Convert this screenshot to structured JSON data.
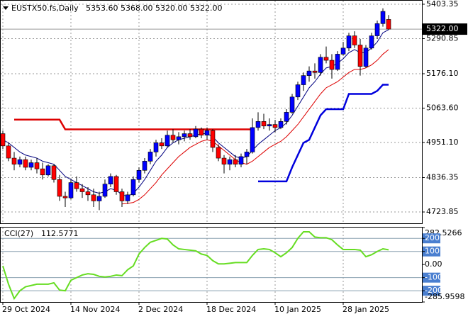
{
  "chart_data": {
    "type": "candlestick",
    "symbol": "EUSTX50.fs,Daily",
    "header_values": [
      "5353.60",
      "5368.00",
      "5320.00",
      "5322.00"
    ],
    "categories": [
      "29 Oct 2024",
      null,
      null,
      null,
      null,
      null,
      null,
      null,
      null,
      null,
      null,
      null,
      "14 Nov 2024",
      null,
      null,
      null,
      null,
      null,
      null,
      null,
      null,
      null,
      null,
      null,
      "2 Dec 2024",
      null,
      null,
      null,
      null,
      null,
      null,
      null,
      null,
      null,
      null,
      null,
      "18 Dec 2024",
      null,
      null,
      null,
      null,
      null,
      null,
      null,
      null,
      null,
      null,
      null,
      "10 Jan 2025",
      null,
      null,
      null,
      null,
      null,
      null,
      null,
      null,
      null,
      null,
      null,
      "28 Jan 2025",
      null,
      null,
      null,
      null,
      null,
      null,
      null,
      null
    ],
    "open": [
      4980,
      4940,
      4900,
      4880,
      4895,
      4870,
      4885,
      4865,
      4845,
      4875,
      4830,
      4775,
      4770,
      4820,
      4800,
      4790,
      4780,
      4760,
      4775,
      4815,
      4840,
      4790,
      4760,
      4780,
      4830,
      4860,
      4890,
      4920,
      4950,
      4940,
      4975,
      4960,
      4970,
      4980,
      4970,
      4995,
      4975,
      4990,
      4935,
      4900,
      4880,
      4895,
      4880,
      4905,
      4920,
      5000,
      5020,
      5005,
      5010,
      5000,
      5020,
      5050,
      5100,
      5140,
      5170,
      5185,
      5180,
      5230,
      5220,
      5190,
      5240,
      5260,
      5300,
      5270,
      5200,
      5260,
      5300,
      5340,
      5353.6
    ],
    "high": [
      4990,
      4950,
      4920,
      4905,
      4905,
      4895,
      4900,
      4885,
      4880,
      4880,
      4845,
      4790,
      4830,
      4840,
      4815,
      4805,
      4800,
      4790,
      4830,
      4850,
      4845,
      4800,
      4790,
      4840,
      4870,
      4900,
      4930,
      4960,
      4965,
      4990,
      4995,
      4985,
      4990,
      4995,
      5005,
      5000,
      5000,
      4995,
      4945,
      4910,
      4905,
      4910,
      4915,
      4930,
      5030,
      5050,
      5045,
      5030,
      5025,
      5030,
      5060,
      5110,
      5150,
      5180,
      5200,
      5210,
      5240,
      5265,
      5240,
      5250,
      5280,
      5310,
      5315,
      5290,
      5270,
      5310,
      5350,
      5390,
      5368
    ],
    "low": [
      4930,
      4890,
      4860,
      4870,
      4860,
      4860,
      4850,
      4830,
      4840,
      4820,
      4760,
      4740,
      4765,
      4790,
      4770,
      4760,
      4740,
      4730,
      4770,
      4805,
      4780,
      4740,
      4750,
      4775,
      4820,
      4850,
      4880,
      4905,
      4930,
      4935,
      4950,
      4945,
      4955,
      4960,
      4965,
      4965,
      4960,
      4920,
      4890,
      4850,
      4860,
      4870,
      4870,
      4880,
      4915,
      4990,
      4995,
      4990,
      4985,
      4995,
      5010,
      5045,
      5090,
      5120,
      5150,
      5160,
      5170,
      5210,
      5160,
      5185,
      5235,
      5250,
      5260,
      5170,
      5195,
      5255,
      5290,
      5330,
      5320
    ],
    "close": [
      4940,
      4900,
      4880,
      4895,
      4870,
      4885,
      4865,
      4845,
      4875,
      4830,
      4775,
      4770,
      4820,
      4800,
      4790,
      4780,
      4760,
      4775,
      4815,
      4840,
      4790,
      4760,
      4780,
      4830,
      4860,
      4890,
      4920,
      4950,
      4940,
      4975,
      4960,
      4970,
      4980,
      4970,
      4995,
      4975,
      4990,
      4935,
      4900,
      4880,
      4895,
      4880,
      4905,
      4920,
      5000,
      5020,
      5005,
      5010,
      5000,
      5020,
      5050,
      5100,
      5140,
      5170,
      5185,
      5180,
      5230,
      5220,
      5190,
      5240,
      5260,
      5300,
      5270,
      5200,
      5260,
      5300,
      5340,
      5380,
      5322
    ],
    "up_color": "#0000ff",
    "down_color": "#ff0000",
    "lines": [
      {
        "color": "#000080",
        "style": "thin",
        "values": [
          4960,
          4950,
          4935,
          4920,
          4910,
          4905,
          4900,
          4890,
          4885,
          4880,
          4860,
          4840,
          4830,
          4820,
          4810,
          4800,
          4790,
          4785,
          4790,
          4800,
          4795,
          4780,
          4775,
          4785,
          4805,
          4830,
          4860,
          4890,
          4910,
          4935,
          4950,
          4960,
          4965,
          4970,
          4975,
          4980,
          4980,
          4970,
          4950,
          4935,
          4920,
          4905,
          4900,
          4905,
          4925,
          4945,
          4960,
          4975,
          4990,
          5000,
          5015,
          5040,
          5070,
          5100,
          5130,
          5150,
          5175,
          5195,
          5200,
          5210,
          5225,
          5245,
          5255,
          5245,
          5245,
          5260,
          5280,
          5310,
          5320
        ]
      },
      {
        "color": "#dd0000",
        "style": "thin",
        "values": [
          null,
          null,
          null,
          null,
          null,
          null,
          null,
          null,
          null,
          null,
          null,
          null,
          null,
          null,
          null,
          null,
          null,
          null,
          null,
          null,
          null,
          4750,
          4752,
          4755,
          4765,
          4780,
          4800,
          4820,
          4845,
          4865,
          4885,
          4905,
          4920,
          4935,
          4945,
          4955,
          4960,
          4955,
          4940,
          4925,
          4910,
          4895,
          4885,
          4880,
          4890,
          4905,
          4920,
          4935,
          4945,
          4955,
          4970,
          4990,
          5010,
          5035,
          5060,
          5085,
          5110,
          5130,
          5140,
          5150,
          5165,
          5180,
          5190,
          5190,
          5195,
          5205,
          5220,
          5240,
          5255
        ]
      },
      {
        "color": "#dd0000",
        "style": "thick",
        "values": [
          null,
          null,
          5026,
          5026,
          5026,
          5026,
          5026,
          5026,
          5026,
          5026,
          5026,
          4994,
          4994,
          4994,
          4994,
          4994,
          4994,
          4994,
          4994,
          4994,
          4994,
          4994,
          4994,
          4994,
          4994,
          4994,
          4994,
          4994,
          4994,
          4994,
          4994,
          4994,
          4994,
          4994,
          4994,
          4994,
          4994,
          4994,
          4994,
          4994,
          4994,
          4994,
          4994,
          4994,
          4994,
          null,
          null,
          null,
          null,
          null,
          null,
          null,
          null,
          null,
          null,
          null,
          null,
          null,
          null,
          null,
          null,
          null,
          null,
          null,
          null,
          null,
          null,
          null,
          null
        ]
      },
      {
        "color": "#0000dd",
        "style": "thick",
        "values": [
          null,
          null,
          null,
          null,
          null,
          null,
          null,
          null,
          null,
          null,
          null,
          null,
          null,
          null,
          null,
          null,
          null,
          null,
          null,
          null,
          null,
          null,
          null,
          null,
          null,
          null,
          null,
          null,
          null,
          null,
          null,
          null,
          null,
          null,
          null,
          null,
          null,
          null,
          null,
          null,
          null,
          null,
          null,
          null,
          null,
          4824,
          4824,
          4824,
          4824,
          4824,
          4824,
          4870,
          4910,
          4950,
          4960,
          5000,
          5040,
          5060,
          5060,
          5060,
          5060,
          5110,
          5110,
          5110,
          5110,
          5110,
          5120,
          5140,
          5140
        ]
      }
    ],
    "ylim": [
      4686.8,
      5414.9
    ],
    "yticks": [
      5403.35,
      5290.85,
      {
        "value": 5176.1,
        "label": "5176.10"
      },
      {
        "value": 5063.6,
        "label": "5063.60"
      },
      {
        "value": 4951.1,
        "label": "4951.10"
      },
      4836.35,
      4723.85
    ],
    "current_price": {
      "value": 5322,
      "label": "5322.00"
    },
    "grid": true,
    "cci": {
      "name": "CCI(27)",
      "last_label": "112.5771",
      "color": "#66dd22",
      "values": [
        -10,
        -150,
        -260,
        -200,
        -170,
        -160,
        -150,
        -150,
        -150,
        -140,
        -195,
        -200,
        -120,
        -100,
        -80,
        -70,
        -75,
        -90,
        -95,
        -90,
        -80,
        -85,
        -40,
        -10,
        80,
        130,
        170,
        185,
        200,
        195,
        150,
        120,
        115,
        110,
        105,
        80,
        70,
        30,
        5,
        5,
        10,
        15,
        15,
        15,
        70,
        115,
        120,
        115,
        90,
        60,
        90,
        130,
        200,
        250,
        250,
        210,
        205,
        205,
        190,
        150,
        115,
        115,
        115,
        110,
        60,
        75,
        100,
        120,
        112.5771
      ],
      "ylim": [
        -285.9598,
        282.5266
      ],
      "yticks": [
        282.5266,
        200,
        100,
        {
          "value": 0,
          "label": "0.00"
        },
        -100,
        -200,
        -285.9598
      ]
    }
  }
}
